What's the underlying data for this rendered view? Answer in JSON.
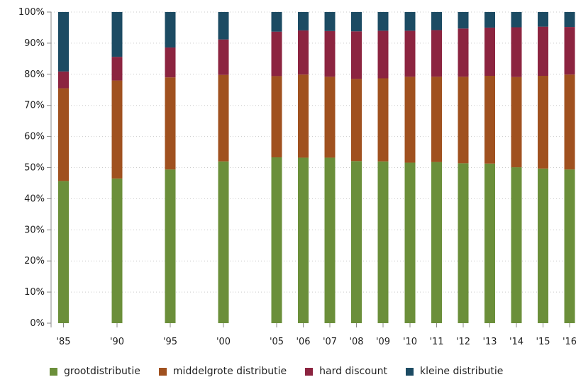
{
  "chart_data": {
    "type": "bar",
    "stacked": true,
    "categories": [
      "'85",
      "'90",
      "'95",
      "'00",
      "'05",
      "'06",
      "'07",
      "'08",
      "'09",
      "'10",
      "'11",
      "'12",
      "'13",
      "'14",
      "'15",
      "'16"
    ],
    "series": [
      {
        "name": "grootdistributie",
        "color": "#6b8f3a",
        "values": [
          45.7,
          46.5,
          49.4,
          52.0,
          53.3,
          53.2,
          53.2,
          52.1,
          52.0,
          51.6,
          51.8,
          51.4,
          51.3,
          50.1,
          49.7,
          49.4
        ]
      },
      {
        "name": "middelgrote distributie",
        "color": "#a0511f",
        "values": [
          29.8,
          31.5,
          29.6,
          27.8,
          26.1,
          26.7,
          26.0,
          26.4,
          26.7,
          27.6,
          27.4,
          27.8,
          28.2,
          29.0,
          29.8,
          30.5
        ]
      },
      {
        "name": "hard discount",
        "color": "#8c2440",
        "values": [
          5.4,
          7.6,
          9.6,
          11.4,
          14.3,
          14.2,
          14.7,
          15.3,
          15.3,
          14.8,
          15.0,
          15.5,
          15.5,
          16.0,
          15.8,
          15.3
        ]
      },
      {
        "name": "kleine distributie",
        "color": "#1c4b63",
        "values": [
          19.1,
          14.4,
          11.4,
          8.8,
          6.3,
          5.9,
          6.1,
          6.2,
          6.0,
          6.0,
          5.8,
          5.3,
          5.0,
          4.9,
          4.7,
          4.8
        ]
      }
    ],
    "yticks": [
      "0%",
      "10%",
      "20%",
      "30%",
      "40%",
      "50%",
      "60%",
      "70%",
      "80%",
      "90%",
      "100%"
    ],
    "ylim": [
      0,
      100
    ],
    "grid": true,
    "legend_position": "bottom"
  }
}
